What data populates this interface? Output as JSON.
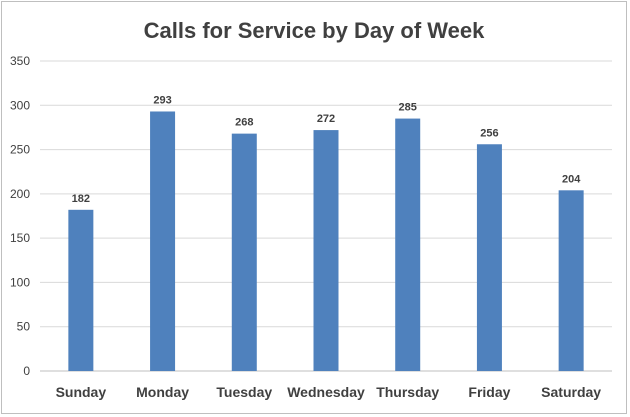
{
  "chart_data": {
    "type": "bar",
    "title": "Calls for Service by Day of Week",
    "xlabel": "",
    "ylabel": "",
    "categories": [
      "Sunday",
      "Monday",
      "Tuesday",
      "Wednesday",
      "Thursday",
      "Friday",
      "Saturday"
    ],
    "values": [
      182,
      293,
      268,
      272,
      285,
      256,
      204
    ],
    "ylim": [
      0,
      350
    ],
    "yticks": [
      0,
      50,
      100,
      150,
      200,
      250,
      300,
      350
    ],
    "grid": true,
    "legend": "none",
    "data_labels": true,
    "colors": {
      "bar": "#4f81bd",
      "grid": "#d9d9d9",
      "text": "#404040"
    }
  }
}
